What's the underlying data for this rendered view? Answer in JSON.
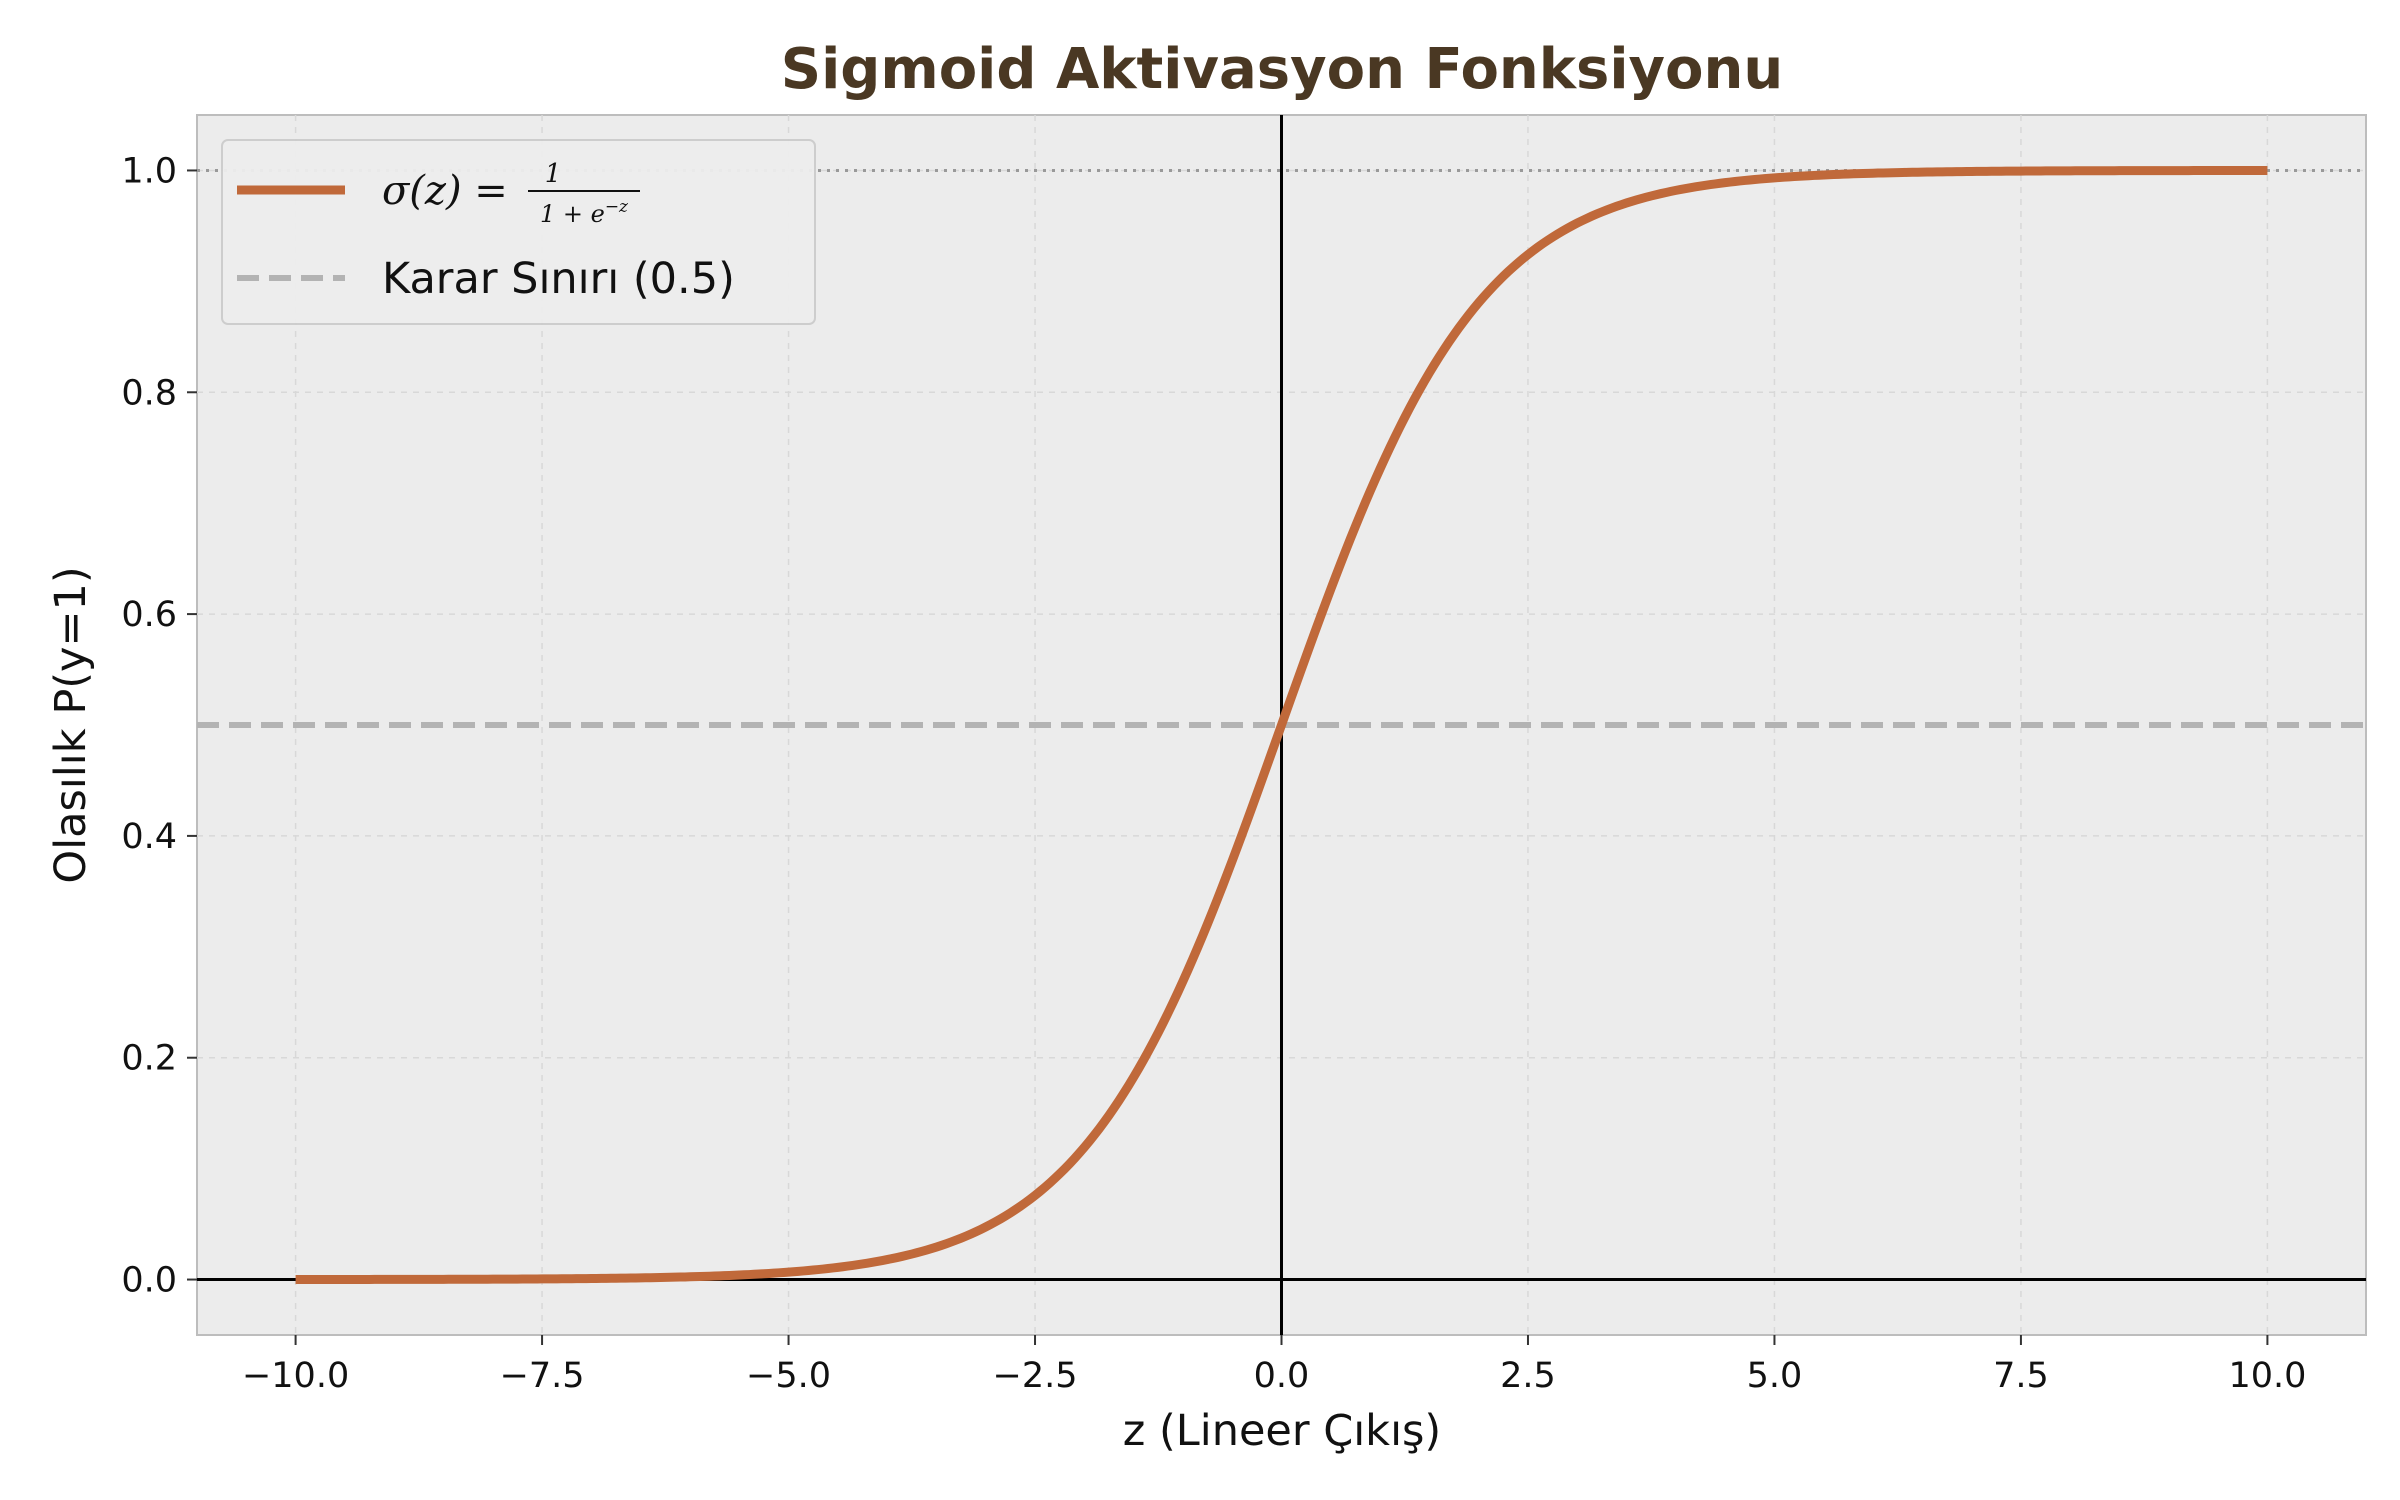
{
  "chart_data": {
    "type": "line",
    "title": "Sigmoid Aktivasyon Fonksiyonu",
    "xlabel": "z (Lineer Çıkış)",
    "ylabel": "Olasılık P(y=1)",
    "xlim": [
      -11,
      11
    ],
    "ylim": [
      -0.05,
      1.05
    ],
    "xticks": [
      -10,
      -7.5,
      -5,
      -2.5,
      0,
      2.5,
      5,
      7.5,
      10
    ],
    "xtick_labels": [
      "−10.0",
      "−7.5",
      "−5.0",
      "−2.5",
      "0.0",
      "2.5",
      "5.0",
      "7.5",
      "10.0"
    ],
    "yticks": [
      0,
      0.2,
      0.4,
      0.6,
      0.8,
      1.0
    ],
    "ytick_labels": [
      "0.0",
      "0.2",
      "0.4",
      "0.6",
      "0.8",
      "1.0"
    ],
    "grid": true,
    "legend_position": "top-left",
    "colors": {
      "sigmoid": "#c0693a",
      "threshold": "#b3b3b3",
      "background": "#ececec",
      "title": "#4a3823",
      "asymptote": "#999999"
    },
    "series": [
      {
        "name": "σ(z) = 1 / (1 + e^−z)",
        "x": [
          -10,
          -9,
          -8,
          -7,
          -6,
          -5,
          -4,
          -3,
          -2.5,
          -2,
          -1.5,
          -1,
          -0.5,
          0,
          0.5,
          1,
          1.5,
          2,
          2.5,
          3,
          4,
          5,
          6,
          7,
          8,
          9,
          10
        ],
        "y": [
          4.54e-05,
          0.0001234,
          0.0003354,
          0.000911,
          0.002473,
          0.006693,
          0.017986,
          0.047426,
          0.075858,
          0.119203,
          0.182426,
          0.268941,
          0.377541,
          0.5,
          0.622459,
          0.731059,
          0.817574,
          0.880797,
          0.924142,
          0.952574,
          0.982014,
          0.993307,
          0.997527,
          0.999089,
          0.999665,
          0.999877,
          0.999955
        ]
      },
      {
        "name": "Karar Sınırı (0.5)",
        "y": 0.5
      }
    ],
    "reference_lines": {
      "horizontal": [
        0,
        1.0
      ],
      "vertical": [
        0
      ]
    },
    "legend": {
      "sigmoid_label": "σ(z) = 1 / (1 + e^−z)",
      "threshold_label": "Karar Sınırı (0.5)"
    }
  }
}
